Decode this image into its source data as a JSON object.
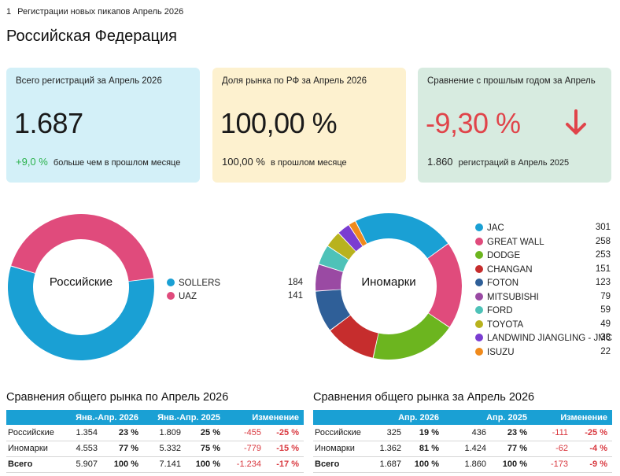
{
  "breadcrumb": {
    "number": "1",
    "text": "Регистрации новых пикапов Апрель 2026"
  },
  "page_title": "Российская Федерация",
  "cards": {
    "total": {
      "title": "Всего регистраций за Апрель 2026",
      "value": "1.687",
      "delta": "+9,0 %",
      "delta_text": "больше чем в прошлом месяце",
      "bg": "#d3f0f8",
      "delta_color": "#2bb24c"
    },
    "share": {
      "title": "Доля рынка по РФ за Апрель 2026",
      "value": "100,00 %",
      "foot_value": "100,00 %",
      "foot_text": "в прошлом месяце",
      "bg": "#fdf1cf"
    },
    "yoy": {
      "title": "Сравнение с прошлым годом за Апрель",
      "value": "-9,30 %",
      "foot_value": "1.860",
      "foot_text": "регистраций в Апрель 2025",
      "bg": "#d7ebe0",
      "value_color": "#e0444a",
      "icon": "arrow-down-icon"
    }
  },
  "chart_data": [
    {
      "type": "pie",
      "center_label": "Российские",
      "categories": [
        "SOLLERS",
        "UAZ"
      ],
      "values": [
        184,
        141
      ],
      "colors": [
        "#1aa0d4",
        "#e04b7c"
      ]
    },
    {
      "type": "pie",
      "center_label": "Иномарки",
      "categories": [
        "JAC",
        "GREAT WALL",
        "DODGE",
        "CHANGAN",
        "FOTON",
        "MITSUBISHI",
        "FORD",
        "TOYOTA",
        "LANDWIND JIANGLING - JMC",
        "ISUZU"
      ],
      "values": [
        301,
        258,
        253,
        151,
        123,
        79,
        59,
        49,
        38,
        22
      ],
      "colors": [
        "#1aa0d4",
        "#e04b7c",
        "#6cb51f",
        "#c62d2d",
        "#2f5f98",
        "#9a4aa3",
        "#4ec2b8",
        "#b8b21e",
        "#7a3dd1",
        "#f08a1c"
      ]
    }
  ],
  "legend_values_left": [
    "184",
    "141"
  ],
  "legend_values_right": [
    "301",
    "258",
    "253",
    "151",
    "123",
    "79",
    "59",
    "49",
    "38",
    "22"
  ],
  "table_left": {
    "title": "Сравнения общего рынка по Апрель 2026",
    "headers": [
      "Янв.-Апр. 2026",
      "Янв.-Апр. 2025",
      "Изменение"
    ],
    "rows": [
      {
        "label": "Российские",
        "v1": "1.354",
        "p1": "23 %",
        "v2": "1.809",
        "p2": "25 %",
        "d": "-455",
        "dp": "-25 %"
      },
      {
        "label": "Иномарки",
        "v1": "4.553",
        "p1": "77 %",
        "v2": "5.332",
        "p2": "75 %",
        "d": "-779",
        "dp": "-15 %"
      },
      {
        "label": "Всего",
        "v1": "5.907",
        "p1": "100 %",
        "v2": "7.141",
        "p2": "100 %",
        "d": "-1.234",
        "dp": "-17 %"
      }
    ]
  },
  "table_right": {
    "title": "Сравнения общего рынка за Апрель 2026",
    "headers": [
      "Апр. 2026",
      "Апр. 2025",
      "Изменение"
    ],
    "rows": [
      {
        "label": "Российские",
        "v1": "325",
        "p1": "19 %",
        "v2": "436",
        "p2": "23 %",
        "d": "-111",
        "dp": "-25 %"
      },
      {
        "label": "Иномарки",
        "v1": "1.362",
        "p1": "81 %",
        "v2": "1.424",
        "p2": "77 %",
        "d": "-62",
        "dp": "-4 %"
      },
      {
        "label": "Всего",
        "v1": "1.687",
        "p1": "100 %",
        "v2": "1.860",
        "p2": "100 %",
        "d": "-173",
        "dp": "-9 %"
      }
    ]
  }
}
